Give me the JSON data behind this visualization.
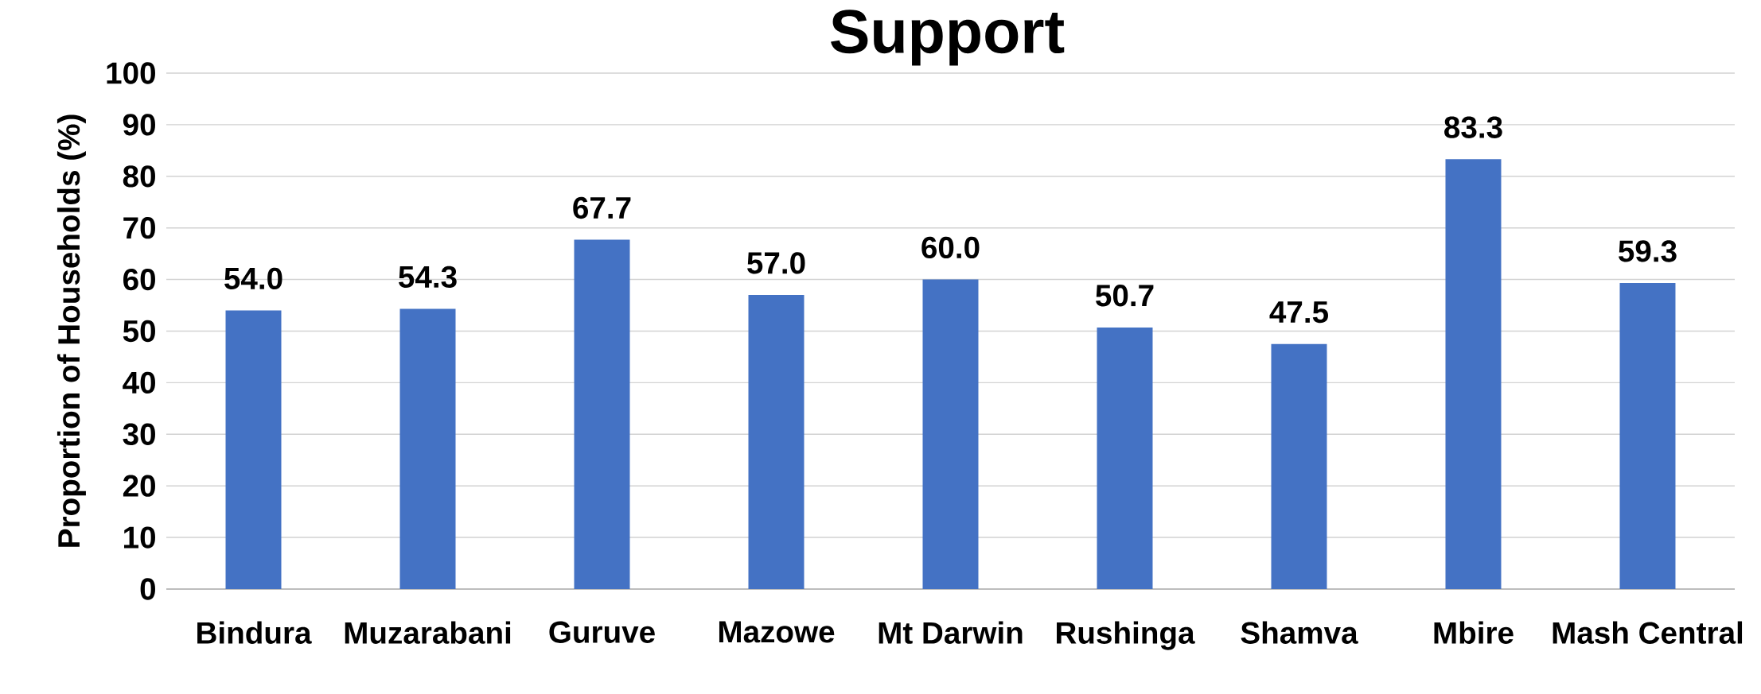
{
  "chart_data": {
    "type": "bar",
    "title": "Support",
    "ylabel": "Proportion of Households (%)",
    "categories": [
      "Bindura",
      "Muzarabani",
      "Guruve",
      "Mazowe",
      "Mt Darwin",
      "Rushinga",
      "Shamva",
      "Mbire",
      "Mash Central"
    ],
    "values": [
      54.0,
      54.3,
      67.7,
      57.0,
      60.0,
      50.7,
      47.5,
      83.3,
      59.3
    ],
    "value_labels": [
      "54.0",
      "54.3",
      "67.7",
      "57.0",
      "60.0",
      "50.7",
      "47.5",
      "83.3",
      "59.3"
    ],
    "color": "#4472c4",
    "ylim": [
      0,
      100
    ],
    "yticks": [
      0,
      10,
      20,
      30,
      40,
      50,
      60,
      70,
      80,
      90,
      100
    ],
    "grid": "y"
  }
}
